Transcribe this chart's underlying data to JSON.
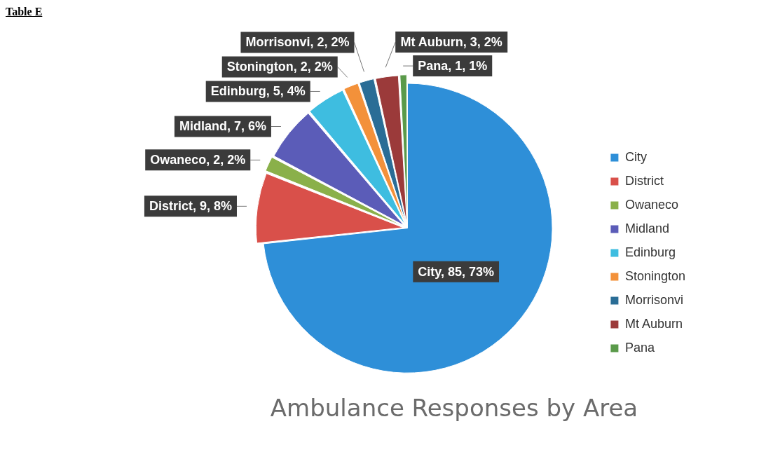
{
  "chart_data": {
    "type": "pie",
    "title": "Ambulance Responses by Area",
    "annotations": [
      "Table E"
    ],
    "categories": [
      "City",
      "District",
      "Owaneco",
      "Midland",
      "Edinburg",
      "Stonington",
      "Morrisonvi",
      "Mt Auburn",
      "Pana"
    ],
    "values": [
      85,
      9,
      2,
      7,
      5,
      2,
      2,
      3,
      1
    ],
    "colors": [
      "#2e8fd8",
      "#d9504a",
      "#8ab04a",
      "#5b5cb8",
      "#3ebde0",
      "#f3913a",
      "#2a6d96",
      "#9b3a3a",
      "#5a9a4a"
    ],
    "value_labels": [
      "City, 85, 73%",
      "District, 9, 8%",
      "Owaneco, 2, 2%",
      "Midland, 7, 6%",
      "Edinburg, 5, 4%",
      "Stonington, 2, 2%",
      "Morrisonvi, 2, 2%",
      "Mt Auburn, 3, 2%",
      "Pana, 1, 1%"
    ],
    "legend": "right"
  }
}
